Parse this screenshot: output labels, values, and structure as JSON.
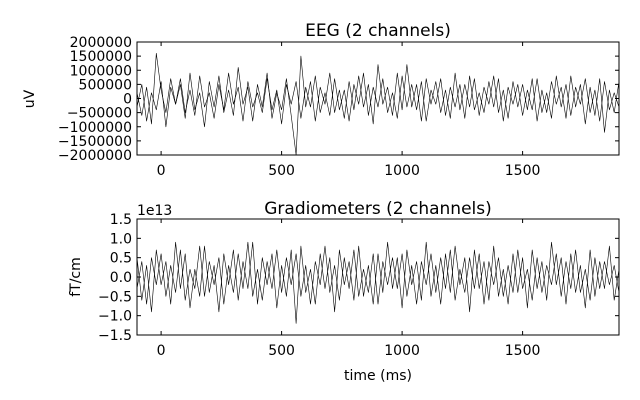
{
  "colors": {
    "background": "#ffffff",
    "trace": "#000000",
    "frame": "#000000"
  },
  "chart_data": [
    {
      "type": "line",
      "title": "EEG (2 channels)",
      "xlabel": "",
      "ylabel": "uV",
      "xlim": [
        -100,
        1900
      ],
      "ylim": [
        -2000000,
        2000000
      ],
      "x_ticks": [
        0,
        500,
        1000,
        1500
      ],
      "x_tick_labels": [
        "0",
        "500",
        "1000",
        "1500"
      ],
      "y_ticks": [
        2000000,
        1500000,
        1000000,
        500000,
        0,
        -500000,
        -1000000,
        -1500000,
        -2000000
      ],
      "y_tick_labels": [
        "2000000",
        "1500000",
        "1000000",
        "500000",
        "0",
        "−500000",
        "−1000000",
        "−1500000",
        "−2000000"
      ],
      "offset_label": "",
      "grid": false,
      "x": [
        -100,
        -80,
        -60,
        -40,
        -20,
        0,
        20,
        40,
        60,
        80,
        100,
        120,
        140,
        160,
        180,
        200,
        220,
        240,
        260,
        280,
        300,
        320,
        340,
        360,
        380,
        400,
        420,
        440,
        460,
        480,
        500,
        520,
        540,
        560,
        580,
        600,
        620,
        640,
        660,
        680,
        700,
        720,
        740,
        760,
        780,
        800,
        820,
        840,
        860,
        880,
        900,
        920,
        940,
        960,
        980,
        1000,
        1020,
        1040,
        1060,
        1080,
        1100,
        1120,
        1140,
        1160,
        1180,
        1200,
        1220,
        1240,
        1260,
        1280,
        1300,
        1320,
        1340,
        1360,
        1380,
        1400,
        1420,
        1440,
        1460,
        1480,
        1500,
        1520,
        1540,
        1560,
        1580,
        1600,
        1620,
        1640,
        1660,
        1680,
        1700,
        1720,
        1740,
        1760,
        1780,
        1800,
        1820,
        1840,
        1860,
        1880,
        1900
      ],
      "series": [
        {
          "values": [
            200000,
            -600000,
            400000,
            -900000,
            1600000,
            300000,
            -500000,
            700000,
            -200000,
            500000,
            -700000,
            900000,
            -400000,
            200000,
            -1000000,
            600000,
            -300000,
            800000,
            -500000,
            300000,
            -600000,
            1100000,
            -200000,
            400000,
            -800000,
            500000,
            -300000,
            900000,
            -700000,
            200000,
            -400000,
            700000,
            -600000,
            -2000000,
            1500000,
            -300000,
            600000,
            -800000,
            400000,
            -200000,
            900000,
            -500000,
            300000,
            -700000,
            600000,
            -400000,
            800000,
            -300000,
            500000,
            -900000,
            1200000,
            -200000,
            400000,
            -600000,
            900000,
            -400000,
            1200000,
            -300000,
            500000,
            -800000,
            700000,
            -200000,
            600000,
            -500000,
            300000,
            -700000,
            900000,
            -400000,
            500000,
            -300000,
            700000,
            -600000,
            400000,
            -200000,
            800000,
            -500000,
            300000,
            -700000,
            600000,
            -300000,
            500000,
            -400000,
            700000,
            -800000,
            300000,
            -500000,
            600000,
            -200000,
            400000,
            -700000,
            800000,
            -300000,
            500000,
            -900000,
            400000,
            -600000,
            700000,
            -1200000,
            300000,
            -500000,
            600000
          ]
        },
        {
          "values": [
            -300000,
            500000,
            -800000,
            200000,
            -400000,
            600000,
            -1000000,
            400000,
            -200000,
            700000,
            -500000,
            300000,
            -600000,
            800000,
            -300000,
            200000,
            -700000,
            500000,
            -400000,
            900000,
            -200000,
            400000,
            -800000,
            600000,
            -300000,
            200000,
            -500000,
            700000,
            -400000,
            300000,
            -900000,
            500000,
            -200000,
            600000,
            -700000,
            400000,
            -300000,
            800000,
            -500000,
            200000,
            -600000,
            700000,
            -400000,
            300000,
            -800000,
            500000,
            -200000,
            900000,
            -600000,
            400000,
            -300000,
            700000,
            -500000,
            200000,
            -700000,
            800000,
            -300000,
            500000,
            -400000,
            600000,
            -800000,
            300000,
            -200000,
            700000,
            -600000,
            400000,
            -300000,
            500000,
            -700000,
            800000,
            -400000,
            200000,
            -500000,
            600000,
            -300000,
            700000,
            -800000,
            400000,
            -200000,
            500000,
            -600000,
            300000,
            -400000,
            700000,
            -500000,
            200000,
            -700000,
            800000,
            -300000,
            500000,
            -600000,
            400000,
            -200000,
            700000,
            -500000,
            300000,
            -800000,
            600000,
            -400000,
            200000,
            -300000
          ]
        }
      ]
    },
    {
      "type": "line",
      "title": "Gradiometers (2 channels)",
      "xlabel": "time (ms)",
      "ylabel": "fT/cm",
      "xlim": [
        -100,
        1900
      ],
      "ylim": [
        -1.5,
        1.5
      ],
      "x_ticks": [
        0,
        500,
        1000,
        1500
      ],
      "x_tick_labels": [
        "0",
        "500",
        "1000",
        "1500"
      ],
      "y_ticks": [
        1.5,
        1.0,
        0.5,
        0.0,
        -0.5,
        -1.0,
        -1.5
      ],
      "y_tick_labels": [
        "1.5",
        "1.0",
        "0.5",
        "0.0",
        "−0.5",
        "−1.0",
        "−1.5"
      ],
      "offset_label": "1e13",
      "grid": false,
      "x": [
        -100,
        -80,
        -60,
        -40,
        -20,
        0,
        20,
        40,
        60,
        80,
        100,
        120,
        140,
        160,
        180,
        200,
        220,
        240,
        260,
        280,
        300,
        320,
        340,
        360,
        380,
        400,
        420,
        440,
        460,
        480,
        500,
        520,
        540,
        560,
        580,
        600,
        620,
        640,
        660,
        680,
        700,
        720,
        740,
        760,
        780,
        800,
        820,
        840,
        860,
        880,
        900,
        920,
        940,
        960,
        980,
        1000,
        1020,
        1040,
        1060,
        1080,
        1100,
        1120,
        1140,
        1160,
        1180,
        1200,
        1220,
        1240,
        1260,
        1280,
        1300,
        1320,
        1340,
        1360,
        1380,
        1400,
        1420,
        1440,
        1460,
        1480,
        1500,
        1520,
        1540,
        1560,
        1580,
        1600,
        1620,
        1640,
        1660,
        1680,
        1700,
        1720,
        1740,
        1760,
        1780,
        1800,
        1820,
        1840,
        1860,
        1880,
        1900
      ],
      "series": [
        {
          "values": [
            0.5,
            -0.6,
            0.3,
            -0.9,
            0.7,
            -0.2,
            0.4,
            -0.7,
            0.9,
            -0.3,
            0.6,
            -0.8,
            0.2,
            -0.5,
            0.8,
            -0.4,
            0.3,
            -0.9,
            0.6,
            -0.2,
            0.7,
            -0.6,
            0.4,
            -0.3,
            0.9,
            -0.7,
            0.5,
            -0.2,
            0.6,
            -0.8,
            0.3,
            -0.5,
            0.7,
            -1.2,
            0.8,
            -0.4,
            0.2,
            -0.7,
            0.6,
            -0.3,
            0.5,
            -0.9,
            0.7,
            -0.2,
            0.4,
            -0.6,
            0.8,
            -0.5,
            0.3,
            -0.7,
            0.6,
            -0.4,
            0.9,
            -0.3,
            0.5,
            -0.8,
            0.7,
            -0.2,
            0.4,
            -0.6,
            0.9,
            -0.5,
            0.3,
            -0.7,
            0.6,
            -0.4,
            0.8,
            -0.2,
            0.5,
            -0.9,
            0.7,
            -0.3,
            0.4,
            -0.6,
            0.8,
            -0.5,
            0.2,
            -0.7,
            0.6,
            -0.4,
            0.5,
            -0.8,
            0.7,
            -0.3,
            0.4,
            -0.6,
            0.9,
            -0.2,
            0.5,
            -0.7,
            0.6,
            -0.4,
            0.3,
            -0.8,
            0.7,
            -0.5,
            0.4,
            -0.3,
            0.8,
            -0.6,
            0.2
          ]
        },
        {
          "values": [
            -0.3,
            0.4,
            -0.7,
            0.5,
            -0.2,
            0.6,
            -0.5,
            0.3,
            -0.4,
            0.7,
            -0.6,
            0.2,
            -0.3,
            0.8,
            -0.5,
            0.4,
            -0.2,
            0.5,
            -0.7,
            0.3,
            -0.4,
            0.6,
            -0.3,
            0.9,
            -0.5,
            0.2,
            -0.6,
            0.4,
            -0.3,
            0.7,
            -0.4,
            0.5,
            -0.2,
            0.6,
            -0.5,
            0.3,
            -0.7,
            0.4,
            -0.2,
            0.8,
            -0.4,
            0.3,
            -0.6,
            0.5,
            -0.3,
            0.7,
            -0.5,
            0.2,
            -0.4,
            0.6,
            -0.7,
            0.4,
            -0.2,
            0.5,
            -0.3,
            0.6,
            -0.5,
            0.3,
            -0.7,
            0.4,
            -0.2,
            0.6,
            -0.4,
            0.5,
            -0.3,
            0.7,
            -0.6,
            0.2,
            -0.4,
            0.5,
            -0.3,
            0.6,
            -0.7,
            0.4,
            -0.2,
            0.5,
            -0.5,
            0.3,
            -0.4,
            0.7,
            -0.3,
            0.2,
            -0.6,
            0.5,
            -0.4,
            0.3,
            -0.2,
            0.6,
            -0.5,
            0.4,
            -0.3,
            0.7,
            -0.4,
            0.2,
            -0.6,
            0.5,
            -0.3,
            0.4,
            -0.2,
            0.3,
            -0.4
          ]
        }
      ]
    }
  ]
}
